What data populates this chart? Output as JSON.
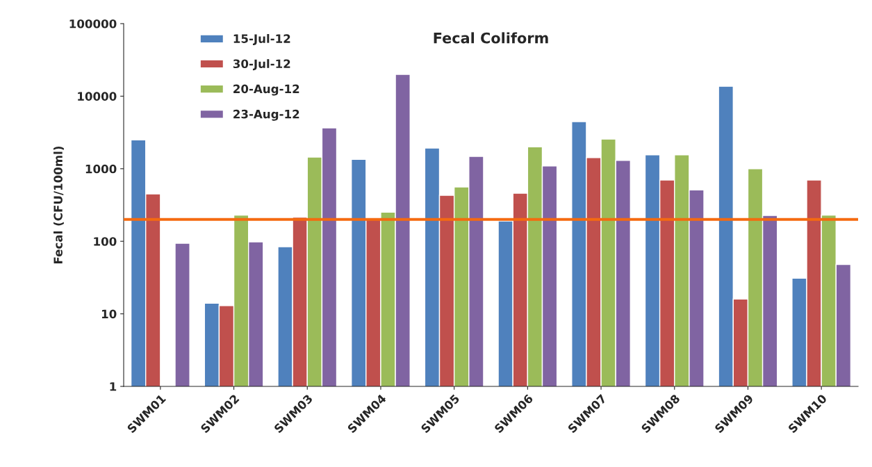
{
  "chart_data": {
    "type": "bar",
    "title": "Fecal Coliform",
    "ylabel": "Fecal (CFU/100ml)",
    "categories": [
      "SWM01",
      "SWM02",
      "SWM03",
      "SWM04",
      "SWM05",
      "SWM06",
      "SWM07",
      "SWM08",
      "SWM09",
      "SWM10"
    ],
    "series": [
      {
        "name": "15-Jul-12",
        "color": "#4f81bd",
        "values": [
          2500,
          14,
          84,
          1350,
          1930,
          190,
          4450,
          1550,
          13700,
          31
        ]
      },
      {
        "name": "30-Jul-12",
        "color": "#c0504d",
        "values": [
          450,
          13,
          215,
          203,
          430,
          460,
          1420,
          700,
          16,
          700
        ]
      },
      {
        "name": "20-Aug-12",
        "color": "#9bbb59",
        "values": [
          null,
          230,
          1450,
          252,
          560,
          2000,
          2560,
          1550,
          1000,
          230
        ]
      },
      {
        "name": "23-Aug-12",
        "color": "#8064a2",
        "values": [
          94,
          98,
          3650,
          20000,
          1480,
          1090,
          1300,
          510,
          227,
          48
        ]
      }
    ],
    "log": true,
    "ylim": [
      1,
      100000
    ],
    "yticks": [
      1,
      10,
      100,
      1000,
      10000,
      100000
    ],
    "ref_lines": [
      {
        "axis": "y",
        "value": 200,
        "color": "#f46a10",
        "line_style": "solid"
      }
    ],
    "legend": "top left",
    "grid": false
  }
}
